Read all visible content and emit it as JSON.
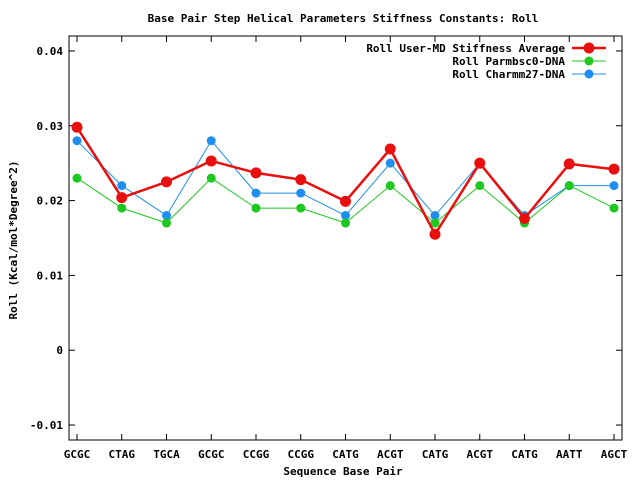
{
  "chart_data": {
    "type": "line",
    "title": "Base Pair Step Helical Parameters Stiffness Constants: Roll",
    "xlabel": "Sequence Base Pair",
    "ylabel": "Roll (Kcal/mol*Degree^2)",
    "ylim": [
      -0.012,
      0.042
    ],
    "yticks": [
      -0.01,
      0,
      0.01,
      0.02,
      0.03,
      0.04
    ],
    "ytick_labels": [
      "-0.01",
      "0",
      "0.01",
      "0.02",
      "0.03",
      "0.04"
    ],
    "categories": [
      "GCGC",
      "CTAG",
      "TGCA",
      "GCGC",
      "CCGG",
      "CCGG",
      "CATG",
      "ACGT",
      "CATG",
      "ACGT",
      "CATG",
      "AATT",
      "AGCT"
    ],
    "grid": false,
    "legend_position": "top-right",
    "series": [
      {
        "name": "Roll User-MD Stiffness Average",
        "color": "#e8100f",
        "values": [
          0.0298,
          0.0204,
          0.0225,
          0.0253,
          0.0237,
          0.0228,
          0.0199,
          0.0269,
          0.0155,
          0.025,
          0.0176,
          0.0249,
          0.0242
        ]
      },
      {
        "name": "Roll Parmbsc0-DNA",
        "color": "#1ec81e",
        "values": [
          0.023,
          0.019,
          0.017,
          0.023,
          0.019,
          0.019,
          0.017,
          0.022,
          0.017,
          0.022,
          0.017,
          0.022,
          0.019
        ]
      },
      {
        "name": "Roll Charmm27-DNA",
        "color": "#1e8ff0",
        "values": [
          0.028,
          0.022,
          0.018,
          0.028,
          0.021,
          0.021,
          0.018,
          0.025,
          0.018,
          0.025,
          0.018,
          0.022,
          0.022
        ]
      }
    ]
  }
}
